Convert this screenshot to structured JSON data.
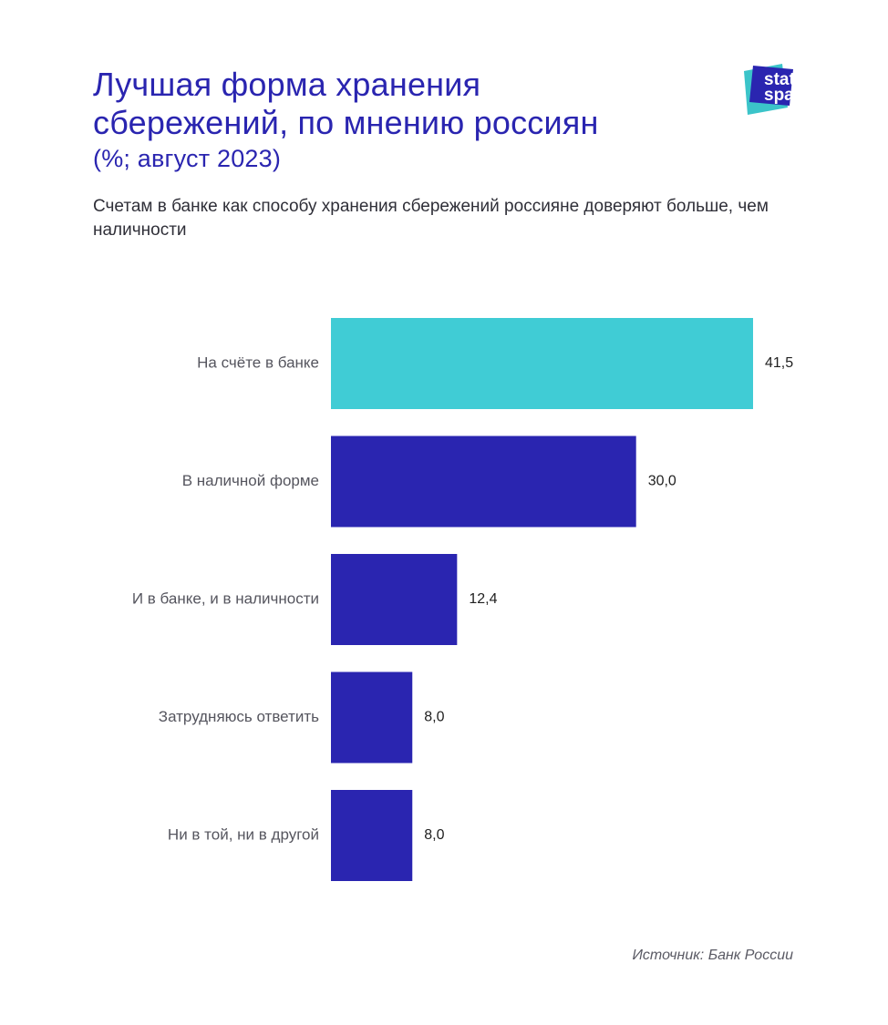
{
  "header": {
    "title_line1": "Лучшая форма хранения",
    "title_line2": "сбережений, по мнению россиян",
    "title_unit": "(%; август 2023)",
    "subtitle": "Счетам в банке как способу хранения сбережений россияне доверяют больше, чем наличности"
  },
  "logo": {
    "line1": "stat",
    "line2": "space"
  },
  "source": "Источник: Банк России",
  "colors": {
    "title": "#2a25b0",
    "highlight_bar": "#40ccd5",
    "bar": "#2a25b0",
    "label": "#55555e",
    "value_label": "#1f1f1f"
  },
  "chart_data": {
    "type": "bar",
    "orientation": "horizontal",
    "categories": [
      "На счёте в банке",
      "В наличной форме",
      "И в банке, и в наличности",
      "Затрудняюсь ответить",
      "Ни в той, ни в другой"
    ],
    "values": [
      41.5,
      30.0,
      12.4,
      8.0,
      8.0
    ],
    "value_labels": [
      "41,5",
      "30,0",
      "12,4",
      "8,0",
      "8,0"
    ],
    "highlighted_index": 0,
    "xlim": [
      0,
      41.5
    ],
    "grid": false,
    "legend": "none"
  }
}
